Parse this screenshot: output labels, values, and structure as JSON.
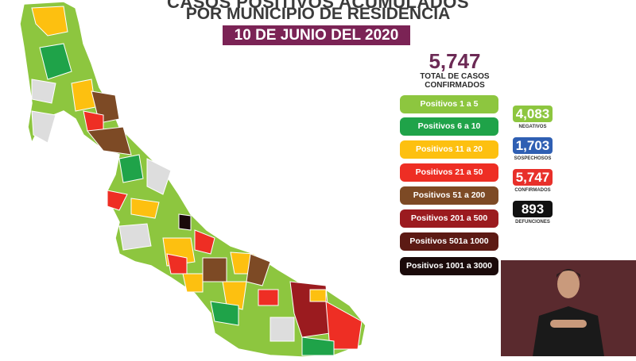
{
  "header": {
    "title_line1": "CASOS POSITIVOS ACUMULADOS",
    "title_line2": "POR MUNICIPIO DE RESIDENCIA",
    "date": "10 DE JUNIO DEL 2020"
  },
  "summary": {
    "total": "5,747",
    "total_label": "TOTAL DE CASOS\nCONFIRMADOS"
  },
  "legend": [
    {
      "label": "Positivos 1 a 5",
      "color": "#8dc63f",
      "text_color": "#ffffff"
    },
    {
      "label": "Positivos 6 a 10",
      "color": "#1fa349",
      "text_color": "#ffffff"
    },
    {
      "label": "Positivos 11 a 20",
      "color": "#fdc010",
      "text_color": "#ffffff"
    },
    {
      "label": "Positivos 21 a 50",
      "color": "#ee2e24",
      "text_color": "#ffffff"
    },
    {
      "label": "Positivos 51 a 200",
      "color": "#7d4a25",
      "text_color": "#ffffff"
    },
    {
      "label": "Positivos 201 a 500",
      "color": "#9b1b1f",
      "text_color": "#ffffff"
    },
    {
      "label": "Positivos 501a 1000",
      "color": "#5c1a14",
      "text_color": "#ffffff"
    },
    {
      "label": "Positivos 1001 a 3000",
      "color": "#1a0a0a",
      "text_color": "#ffffff"
    }
  ],
  "stats": [
    {
      "value": "4,083",
      "label": "NEGATIVOS",
      "color": "#8dc63f"
    },
    {
      "value": "1,703",
      "label": "SOSPECHOSOS",
      "color": "#2f5fb3"
    },
    {
      "value": "5,747",
      "label": "CONFIRMADOS",
      "color": "#e8302a"
    },
    {
      "value": "893",
      "label": "DEFUNCIONES",
      "color": "#111111"
    }
  ],
  "map": {
    "region_colors": [
      "#8dc63f",
      "#1fa349",
      "#fdc010",
      "#ee2e24",
      "#7d4a25",
      "#9b1b1f",
      "#5c1a14",
      "#1a0a0a",
      "#dddddd"
    ]
  }
}
